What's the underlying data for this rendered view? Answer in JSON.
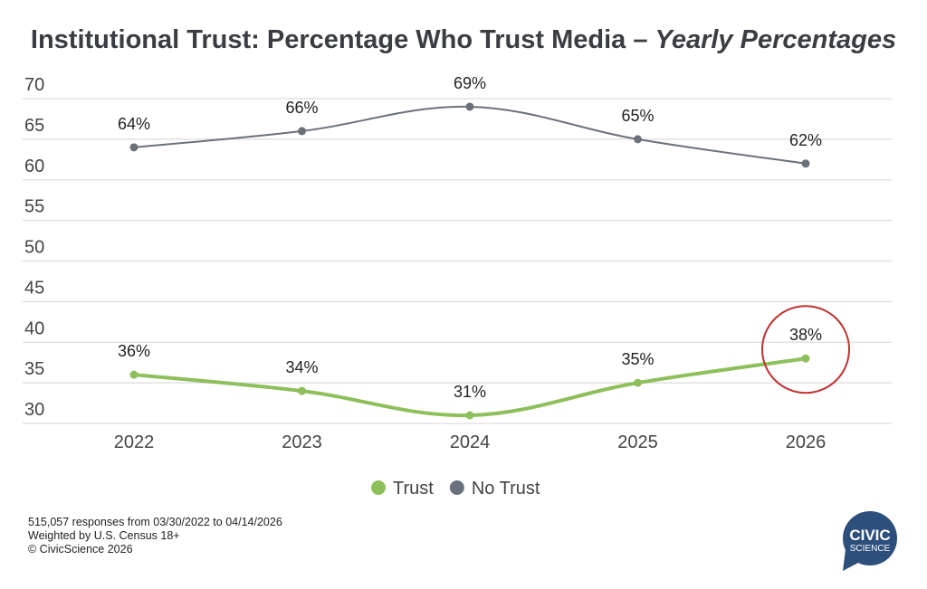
{
  "chart_data": {
    "type": "line",
    "title": "Institutional Trust: Percentage Who Trust Media",
    "subtitle": "Yearly Percentages",
    "categories": [
      "2022",
      "2023",
      "2024",
      "2025",
      "2026"
    ],
    "ylim": [
      30,
      70
    ],
    "yticks": [
      70,
      65,
      60,
      55,
      50,
      45,
      40,
      35,
      30
    ],
    "grid": true,
    "legend_position": "bottom",
    "series": [
      {
        "name": "Trust",
        "color": "#8dbf5a",
        "values": [
          36,
          34,
          31,
          35,
          38
        ],
        "labels": [
          "36%",
          "34%",
          "31%",
          "35%",
          "38%"
        ]
      },
      {
        "name": "No Trust",
        "color": "#6b717b",
        "values": [
          64,
          66,
          69,
          65,
          62
        ],
        "labels": [
          "64%",
          "66%",
          "69%",
          "65%",
          "62%"
        ]
      }
    ],
    "annotation": {
      "type": "circle",
      "series": "Trust",
      "category": "2026",
      "color": "#c0312f"
    }
  },
  "notes": [
    "515,057 responses from 03/30/2022 to 04/14/2026",
    "Weighted by U.S. Census 18+",
    "© CivicScience 2026"
  ],
  "logo": {
    "line1": "CIVIC",
    "line2": "SCIENCE",
    "color": "#2d4f7c"
  }
}
